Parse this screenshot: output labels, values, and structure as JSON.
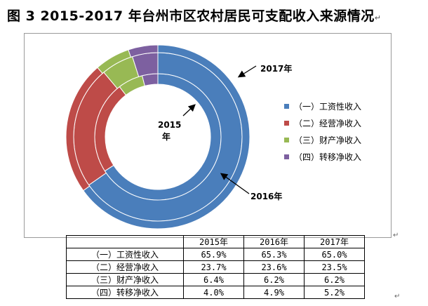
{
  "title": "图 3   2015-2017 年台州市区农村居民可支配收入来源情况",
  "chart_data": {
    "type": "donut",
    "title": "图 3   2015-2017 年台州市区农村居民可支配收入来源情况",
    "categories": [
      "（一）工资性收入",
      "（二）经营净收入",
      "（三）财产净收入",
      "（四）转移净收入"
    ],
    "series": [
      {
        "name": "2015年",
        "values": [
          65.9,
          23.7,
          6.4,
          4.0
        ]
      },
      {
        "name": "2016年",
        "values": [
          65.3,
          23.6,
          6.2,
          4.9
        ]
      },
      {
        "name": "2017年",
        "values": [
          65.0,
          23.5,
          6.2,
          5.2
        ]
      }
    ],
    "unit": "%",
    "legend_position": "right",
    "colors": [
      "#4a7ebb",
      "#be4b48",
      "#98b954",
      "#7d60a0"
    ],
    "annotations": [
      {
        "text": "2017年",
        "target_series": "2017年"
      },
      {
        "text": "2016年",
        "target_series": "2016年"
      },
      {
        "text": "2015\n年",
        "target_series": "2015年"
      }
    ]
  },
  "legend": [
    {
      "label": "（一）工资性收入",
      "color": "#4a7ebb"
    },
    {
      "label": "（二）经营净收入",
      "color": "#be4b48"
    },
    {
      "label": "（三）财产净收入",
      "color": "#98b954"
    },
    {
      "label": "（四）转移净收入",
      "color": "#7d60a0"
    }
  ],
  "annotations": {
    "y2017": "2017年",
    "y2016": "2016年",
    "y2015_line1": "2015",
    "y2015_line2": "年"
  },
  "table": {
    "headers": [
      "",
      "2015年",
      "2016年",
      "2017年"
    ],
    "rows": [
      {
        "label": "（一）工资性收入",
        "values": [
          "65.9%",
          "65.3%",
          "65.0%"
        ]
      },
      {
        "label": "（二）经营净收入",
        "values": [
          "23.7%",
          "23.6%",
          "23.5%"
        ]
      },
      {
        "label": "（三）财产净收入",
        "values": [
          "6.4%",
          "6.2%",
          "6.2%"
        ]
      },
      {
        "label": "（四）转移净收入",
        "values": [
          "4.0%",
          "4.9%",
          "5.2%"
        ]
      }
    ]
  },
  "para_mark": "↵"
}
